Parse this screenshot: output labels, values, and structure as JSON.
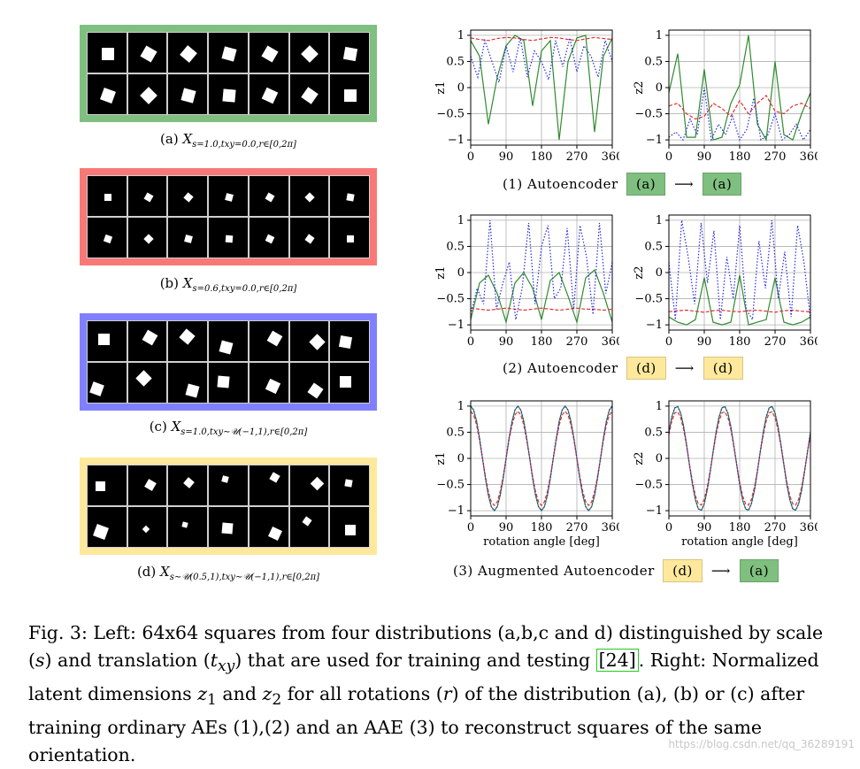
{
  "colors": {
    "a": "#7fbf7f",
    "b": "#f87878",
    "c": "#8080ff",
    "d": "#fde89c",
    "series_green": "#2e8b2e",
    "series_red": "#e23030",
    "series_blue": "#2828e0"
  },
  "left_panels": [
    {
      "id": "a",
      "caption_prefix": "(a)",
      "caption_math": "X",
      "caption_sub": "s=1.0,txy=0.0,r∈[0,2π]"
    },
    {
      "id": "b",
      "caption_prefix": "(b)",
      "caption_math": "X",
      "caption_sub": "s=0.6,txy=0.0,r∈[0,2π]"
    },
    {
      "id": "c",
      "caption_prefix": "(c)",
      "caption_math": "X",
      "caption_sub": "s=1.0,txy∼𝒰(−1,1),r∈[0,2π]"
    },
    {
      "id": "d",
      "caption_prefix": "(d)",
      "caption_math": "X",
      "caption_sub": "s∼𝒰(0.5,1),txy∼𝒰(−1,1),r∈[0,2π]"
    }
  ],
  "rows": [
    {
      "label": "(1) Autoencoder",
      "from": "(a)",
      "to": "(a)",
      "from_id": "a",
      "to_id": "a"
    },
    {
      "label": "(2) Autoencoder",
      "from": "(d)",
      "to": "(d)",
      "from_id": "d",
      "to_id": "d"
    },
    {
      "label": "(3) Augmented Autoencoder",
      "from": "(d)",
      "to": "(a)",
      "from_id": "d",
      "to_id": "a"
    }
  ],
  "arrow": "⟶",
  "chart_data": [
    {
      "type": "line",
      "row": 1,
      "ylabel": "z1",
      "xlabel": "",
      "xticks": [
        0,
        90,
        180,
        270,
        360
      ],
      "yticks": [
        1,
        0.5,
        0,
        -0.5,
        -1
      ],
      "ytick_labels": [
        "1",
        "0.5",
        "0",
        "−0.5",
        "−1"
      ],
      "xlim": [
        0,
        360
      ],
      "ylim": [
        -1.1,
        1.1
      ],
      "grid": true,
      "series": [
        {
          "style": "solid",
          "color": "green",
          "values": [
            0.9,
            0.6,
            -0.7,
            0.2,
            0.8,
            1.0,
            0.9,
            -0.35,
            0.7,
            0.9,
            -1.0,
            0.5,
            0.95,
            1.0,
            -0.85,
            0.6,
            0.95
          ]
        },
        {
          "style": "dashed",
          "color": "red",
          "values": [
            0.95,
            0.92,
            0.9,
            0.94,
            0.96,
            0.95,
            0.92,
            0.9,
            0.93,
            0.96,
            0.95,
            0.92,
            0.9,
            0.93,
            0.96,
            0.94,
            0.92
          ]
        },
        {
          "style": "dotted",
          "color": "blue",
          "values": [
            0.6,
            0.2,
            0.9,
            0.5,
            0.1,
            0.8,
            0.3,
            0.95,
            0.2,
            0.7,
            0.5,
            0.15,
            0.9,
            0.4,
            0.95,
            0.3,
            0.8,
            0.6,
            0.2,
            0.9,
            0.5
          ]
        }
      ]
    },
    {
      "type": "line",
      "row": 1,
      "ylabel": "z2",
      "xlabel": "",
      "xticks": [
        0,
        90,
        180,
        270,
        360
      ],
      "yticks": [
        1,
        0.5,
        0,
        -0.5,
        -1
      ],
      "ytick_labels": [
        "1",
        "0.5",
        "0",
        "−0.5",
        "−1"
      ],
      "xlim": [
        0,
        360
      ],
      "ylim": [
        -1.1,
        1.1
      ],
      "grid": true,
      "series": [
        {
          "style": "solid",
          "color": "green",
          "values": [
            -0.1,
            0.65,
            -0.95,
            -0.95,
            0.35,
            -1.0,
            -0.95,
            -0.3,
            0.05,
            1.0,
            -0.7,
            -1.0,
            0.5,
            -0.9,
            -1.0,
            -0.5,
            -0.1
          ]
        },
        {
          "style": "dashed",
          "color": "red",
          "values": [
            -0.35,
            -0.3,
            -0.5,
            -0.6,
            -0.55,
            -0.3,
            -0.4,
            -0.55,
            -0.25,
            -0.5,
            -0.3,
            -0.15,
            -0.45,
            -0.5,
            -0.35,
            -0.3,
            -0.4
          ]
        },
        {
          "style": "dotted",
          "color": "blue",
          "values": [
            -0.95,
            -0.85,
            -1.0,
            -0.6,
            -0.9,
            0.0,
            -1.0,
            -0.7,
            -0.9,
            -0.55,
            -1.0,
            -0.8,
            -0.2,
            -1.0,
            -0.9,
            -0.5,
            -1.0,
            -0.9,
            -0.7,
            -1.0,
            -0.8
          ]
        }
      ]
    },
    {
      "type": "line",
      "row": 2,
      "ylabel": "z1",
      "xlabel": "",
      "xticks": [
        0,
        90,
        180,
        270,
        360
      ],
      "yticks": [
        1,
        0.5,
        0,
        -0.5,
        -1
      ],
      "ytick_labels": [
        "1",
        "0.5",
        "0",
        "−0.5",
        "−1"
      ],
      "xlim": [
        0,
        360
      ],
      "ylim": [
        -1.1,
        1.1
      ],
      "grid": true,
      "series": [
        {
          "style": "solid",
          "color": "green",
          "values": [
            -0.9,
            -0.2,
            -0.05,
            -0.4,
            -0.95,
            -0.2,
            0.0,
            -0.3,
            -0.9,
            -0.15,
            0.0,
            -0.45,
            -0.95,
            -0.1,
            0.05,
            -0.4,
            -0.95
          ]
        },
        {
          "style": "dashed",
          "color": "red",
          "values": [
            -0.68,
            -0.7,
            -0.72,
            -0.7,
            -0.68,
            -0.7,
            -0.72,
            -0.7,
            -0.68,
            -0.7,
            -0.72,
            -0.7,
            -0.68,
            -0.7,
            -0.7,
            -0.72,
            -0.7
          ]
        },
        {
          "style": "dotted",
          "color": "blue",
          "values": [
            -0.8,
            -0.3,
            -0.6,
            1.0,
            -0.7,
            -0.2,
            0.2,
            -0.9,
            -0.3,
            0.95,
            -0.6,
            0.5,
            0.9,
            -0.5,
            -0.3,
            0.85,
            -0.7,
            0.9,
            0.3,
            -0.8,
            0.95,
            -0.4,
            0.2
          ]
        }
      ]
    },
    {
      "type": "line",
      "row": 2,
      "ylabel": "z2",
      "xlabel": "",
      "xticks": [
        0,
        90,
        180,
        270,
        360
      ],
      "yticks": [
        1,
        0.5,
        0,
        -0.5,
        -1
      ],
      "ytick_labels": [
        "1",
        "0.5",
        "0",
        "−0.5",
        "−1"
      ],
      "xlim": [
        0,
        360
      ],
      "ylim": [
        -1.1,
        1.1
      ],
      "grid": true,
      "series": [
        {
          "style": "solid",
          "color": "green",
          "values": [
            -0.85,
            -0.95,
            -1.0,
            -0.9,
            -0.1,
            -0.95,
            -1.0,
            -0.95,
            -0.05,
            -1.0,
            -0.95,
            -0.9,
            -0.1,
            -0.95,
            -1.0,
            -0.95,
            -0.85
          ]
        },
        {
          "style": "dashed",
          "color": "red",
          "values": [
            -0.75,
            -0.73,
            -0.72,
            -0.74,
            -0.76,
            -0.73,
            -0.72,
            -0.74,
            -0.75,
            -0.73,
            -0.72,
            -0.74,
            -0.76,
            -0.73,
            -0.72,
            -0.74,
            -0.75
          ]
        },
        {
          "style": "dotted",
          "color": "blue",
          "values": [
            0.2,
            -0.9,
            1.0,
            0.3,
            -0.6,
            0.95,
            -0.2,
            0.8,
            -0.9,
            0.3,
            -0.5,
            0.9,
            -0.7,
            -0.9,
            0.6,
            -0.3,
            1.0,
            -0.5,
            0.4,
            -0.85,
            0.9,
            0.2,
            -0.9
          ]
        }
      ]
    },
    {
      "type": "line",
      "row": 3,
      "ylabel": "z1",
      "xlabel": "rotation angle [deg]",
      "xticks": [
        0,
        90,
        180,
        270,
        360
      ],
      "yticks": [
        1,
        0.5,
        0,
        -0.5,
        -1
      ],
      "ytick_labels": [
        "1",
        "0.5",
        "0",
        "−0.5",
        "−1"
      ],
      "xlim": [
        0,
        360
      ],
      "ylim": [
        -1.1,
        1.1
      ],
      "grid": true,
      "series": [
        {
          "style": "solid",
          "color": "green",
          "phase": 0
        },
        {
          "style": "dashed",
          "color": "red",
          "phase": 0
        },
        {
          "style": "dotted",
          "color": "blue",
          "phase": 0
        }
      ]
    },
    {
      "type": "line",
      "row": 3,
      "ylabel": "z2",
      "xlabel": "rotation angle [deg]",
      "xticks": [
        0,
        90,
        180,
        270,
        360
      ],
      "yticks": [
        1,
        0.5,
        0,
        -0.5,
        -1
      ],
      "ytick_labels": [
        "1",
        "0.5",
        "0",
        "−0.5",
        "−1"
      ],
      "xlim": [
        0,
        360
      ],
      "ylim": [
        -1.1,
        1.1
      ],
      "grid": true,
      "series": [
        {
          "style": "solid",
          "color": "green",
          "phase": 90
        },
        {
          "style": "dashed",
          "color": "red",
          "phase": 90
        },
        {
          "style": "dotted",
          "color": "blue",
          "phase": 90
        }
      ]
    }
  ],
  "figure_caption": {
    "part1": "Fig. 3: Left: 64x64 squares from four distributions (a,b,c and d) distinguished by scale (",
    "s": "s",
    "part2": ") and translation (",
    "txy": "t",
    "txy_sub": "xy",
    "part3": ") that are used for training and testing ",
    "ref": "[24]",
    "part4": ". Right: Normalized latent dimensions ",
    "z1": "z",
    "z1_sub": "1",
    "part5": " and ",
    "z2": "z",
    "z2_sub": "2",
    "part6": " for all rotations (",
    "r": "r",
    "part7": ") of the distribution (a), (b) or (c) after training ordinary AEs (1),(2) and an AAE (3) to reconstruct squares of the same orientation."
  },
  "watermark": "https://blog.csdn.net/qq_36289191"
}
